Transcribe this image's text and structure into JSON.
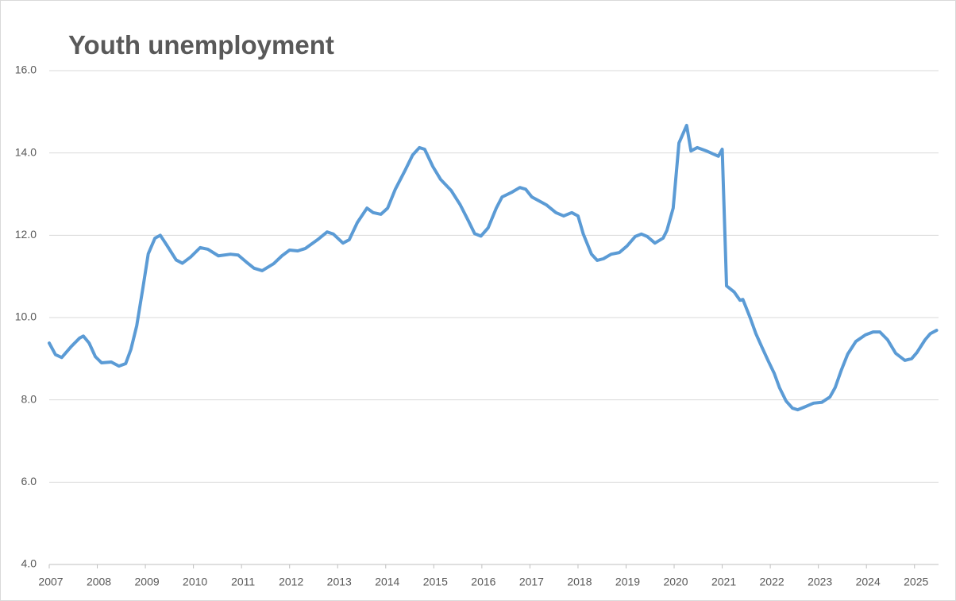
{
  "chart_data": {
    "type": "line",
    "title": "Youth unemployment",
    "x": [
      2007.0,
      2007.13,
      2007.26,
      2007.46,
      2007.63,
      2007.71,
      2007.83,
      2007.96,
      2008.09,
      2008.29,
      2008.45,
      2008.59,
      2008.7,
      2008.82,
      2008.95,
      2009.06,
      2009.2,
      2009.31,
      2009.44,
      2009.64,
      2009.77,
      2009.94,
      2010.14,
      2010.3,
      2010.52,
      2010.77,
      2010.93,
      2011.1,
      2011.26,
      2011.43,
      2011.67,
      2011.84,
      2012.0,
      2012.17,
      2012.33,
      2012.58,
      2012.78,
      2012.91,
      2013.11,
      2013.24,
      2013.41,
      2013.61,
      2013.74,
      2013.9,
      2014.04,
      2014.2,
      2014.4,
      2014.56,
      2014.7,
      2014.81,
      2014.98,
      2015.14,
      2015.36,
      2015.55,
      2015.72,
      2015.85,
      2015.98,
      2016.13,
      2016.3,
      2016.42,
      2016.63,
      2016.79,
      2016.91,
      2017.04,
      2017.34,
      2017.54,
      2017.7,
      2017.87,
      2018.0,
      2018.11,
      2018.28,
      2018.4,
      2018.53,
      2018.69,
      2018.86,
      2019.02,
      2019.19,
      2019.32,
      2019.44,
      2019.6,
      2019.77,
      2019.85,
      2019.98,
      2020.1,
      2020.26,
      2020.35,
      2020.48,
      2020.67,
      2020.92,
      2021.0,
      2021.09,
      2021.25,
      2021.37,
      2021.43,
      2021.58,
      2021.7,
      2021.83,
      2021.96,
      2022.08,
      2022.19,
      2022.33,
      2022.46,
      2022.57,
      2022.74,
      2022.9,
      2023.07,
      2023.24,
      2023.35,
      2023.48,
      2023.61,
      2023.78,
      2023.98,
      2024.14,
      2024.28,
      2024.44,
      2024.61,
      2024.8,
      2024.94,
      2025.05,
      2025.22,
      2025.33,
      2025.46
    ],
    "series": [
      {
        "color": "#5b9bd5",
        "values": [
          9.38,
          9.1,
          9.03,
          9.3,
          9.5,
          9.55,
          9.38,
          9.05,
          8.9,
          8.92,
          8.82,
          8.88,
          9.23,
          9.8,
          10.73,
          11.55,
          11.93,
          12.0,
          11.77,
          11.4,
          11.32,
          11.47,
          11.7,
          11.66,
          11.5,
          11.54,
          11.52,
          11.35,
          11.2,
          11.14,
          11.31,
          11.5,
          11.64,
          11.62,
          11.68,
          11.89,
          12.08,
          12.03,
          11.81,
          11.89,
          12.31,
          12.66,
          12.55,
          12.51,
          12.66,
          13.12,
          13.57,
          13.95,
          14.13,
          14.09,
          13.67,
          13.36,
          13.09,
          12.74,
          12.35,
          12.04,
          11.98,
          12.18,
          12.66,
          12.93,
          13.05,
          13.16,
          13.12,
          12.93,
          12.74,
          12.55,
          12.47,
          12.55,
          12.47,
          12.03,
          11.54,
          11.39,
          11.43,
          11.54,
          11.58,
          11.74,
          11.97,
          12.03,
          11.97,
          11.81,
          11.93,
          12.12,
          12.66,
          14.24,
          14.67,
          14.05,
          14.13,
          14.05,
          13.92,
          14.09,
          10.77,
          10.62,
          10.42,
          10.44,
          10.0,
          9.61,
          9.27,
          8.94,
          8.65,
          8.3,
          7.97,
          7.8,
          7.76,
          7.84,
          7.92,
          7.94,
          8.07,
          8.3,
          8.73,
          9.11,
          9.42,
          9.58,
          9.65,
          9.65,
          9.46,
          9.13,
          8.96,
          9.0,
          9.15,
          9.46,
          9.61,
          9.69
        ]
      }
    ],
    "xlim": [
      2007,
      2025.5
    ],
    "xticks": [
      2007,
      2008,
      2009,
      2010,
      2011,
      2012,
      2013,
      2014,
      2015,
      2016,
      2017,
      2018,
      2019,
      2020,
      2021,
      2022,
      2023,
      2024,
      2025
    ],
    "ylim": [
      4,
      16
    ],
    "yticks": [
      {
        "value": 4,
        "label": "4.0"
      },
      {
        "value": 6,
        "label": "6.0"
      },
      {
        "value": 8,
        "label": "8.0"
      },
      {
        "value": 10,
        "label": "10.0"
      },
      {
        "value": 12,
        "label": "12.0"
      },
      {
        "value": 14,
        "label": "14.0"
      },
      {
        "value": 16,
        "label": "16.0"
      }
    ],
    "grid": true
  }
}
